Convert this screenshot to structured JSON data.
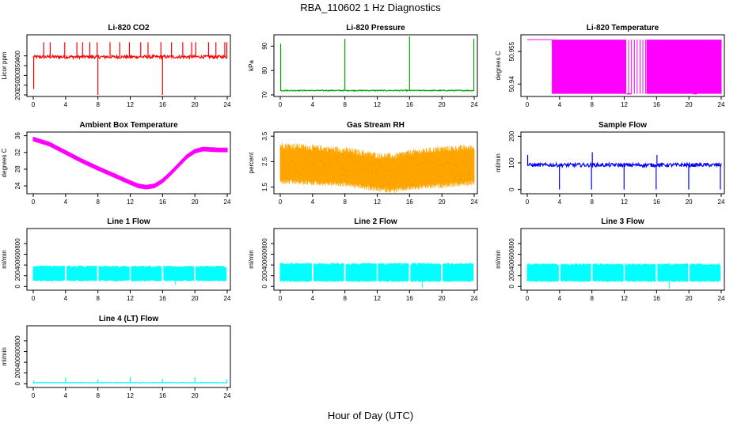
{
  "figure": {
    "title": "RBA_110602  1 Hz Diagnostics",
    "xlabel": "Hour of Day (UTC)"
  },
  "chart_data": [
    {
      "type": "line",
      "title": "Li-820 CO2",
      "ylabel": "Licor ppm",
      "color": "#ff0000",
      "xlim": [
        0,
        24
      ],
      "xticks": [
        0,
        4,
        8,
        12,
        16,
        20,
        24
      ],
      "ylim": [
        200,
        500
      ],
      "yticks": [
        200,
        250,
        300,
        350,
        400
      ],
      "baseline": 395,
      "noise": 8,
      "spikes": [
        {
          "x": 0.05,
          "y": 230
        },
        {
          "x": 1.3,
          "y": 470
        },
        {
          "x": 2.1,
          "y": 470
        },
        {
          "x": 3.9,
          "y": 470
        },
        {
          "x": 5.4,
          "y": 470
        },
        {
          "x": 6.1,
          "y": 470
        },
        {
          "x": 7.0,
          "y": 470
        },
        {
          "x": 7.9,
          "y": 470
        },
        {
          "x": 8.0,
          "y": 200
        },
        {
          "x": 9.5,
          "y": 470
        },
        {
          "x": 10.7,
          "y": 470
        },
        {
          "x": 11.9,
          "y": 470
        },
        {
          "x": 13.3,
          "y": 470
        },
        {
          "x": 14.2,
          "y": 470
        },
        {
          "x": 15.8,
          "y": 470
        },
        {
          "x": 16.0,
          "y": 200
        },
        {
          "x": 17.1,
          "y": 470
        },
        {
          "x": 18.5,
          "y": 470
        },
        {
          "x": 19.6,
          "y": 470
        },
        {
          "x": 20.1,
          "y": 470
        },
        {
          "x": 21.7,
          "y": 470
        },
        {
          "x": 22.6,
          "y": 470
        },
        {
          "x": 23.7,
          "y": 470
        },
        {
          "x": 23.95,
          "y": 470
        }
      ]
    },
    {
      "type": "line",
      "title": "Li-820 Pressure",
      "ylabel": "kPa",
      "color": "#00aa00",
      "xlim": [
        0,
        24
      ],
      "xticks": [
        0,
        4,
        8,
        12,
        16,
        20,
        24
      ],
      "ylim": [
        70,
        94
      ],
      "yticks": [
        70,
        80,
        90
      ],
      "baseline": 71.8,
      "noise": 0.2,
      "spikes": [
        {
          "x": 0.05,
          "y": 91
        },
        {
          "x": 8.0,
          "y": 93
        },
        {
          "x": 16.0,
          "y": 94
        },
        {
          "x": 23.95,
          "y": 93
        }
      ]
    },
    {
      "type": "step",
      "title": "Li-820 Temperature",
      "ylabel": "degrees C",
      "color": "#ff00ff",
      "xlim": [
        0,
        24
      ],
      "xticks": [
        0,
        4,
        8,
        12,
        16,
        20,
        24
      ],
      "ylim": [
        50.935,
        50.962
      ],
      "yticks": [
        50.94,
        50.955
      ],
      "high": 50.9605,
      "low": 50.9355,
      "dense_ranges": [
        [
          3.1,
          12.2
        ],
        [
          14.8,
          24
        ]
      ],
      "sparse_ranges": [
        [
          12.2,
          14.8
        ]
      ],
      "solid_low_ranges": [
        [
          12.3,
          12.9
        ],
        [
          20.5,
          21.0
        ]
      ]
    },
    {
      "type": "scatter",
      "title": "Ambient Box Temperature",
      "ylabel": "degrees C",
      "color": "#ff00ff",
      "xlim": [
        0,
        24
      ],
      "xticks": [
        0,
        4,
        8,
        12,
        16,
        20,
        24
      ],
      "ylim": [
        22.5,
        36.5
      ],
      "yticks": [
        24,
        28,
        32,
        36
      ],
      "x": [
        0,
        2,
        4,
        6,
        8,
        10,
        12,
        13,
        14,
        15,
        16,
        17,
        18,
        19,
        20,
        21,
        22,
        23,
        24
      ],
      "y": [
        35.2,
        34.0,
        32.0,
        30.0,
        28.2,
        26.5,
        24.8,
        24.0,
        23.7,
        24.0,
        25.2,
        27.0,
        29.0,
        31.0,
        32.3,
        32.8,
        32.7,
        32.6,
        32.6
      ],
      "band": 0.45
    },
    {
      "type": "scatter",
      "title": "Gas Stream RH",
      "ylabel": "percent",
      "color": "#ffa500",
      "xlim": [
        0,
        24
      ],
      "xticks": [
        0,
        4,
        8,
        12,
        16,
        20,
        24
      ],
      "ylim": [
        1.3,
        3.6
      ],
      "yticks": [
        1.5,
        2.5,
        3.5
      ],
      "x": [
        0,
        4,
        8,
        12,
        14,
        16,
        20,
        24
      ],
      "upper": [
        3.1,
        3.0,
        2.9,
        2.7,
        2.65,
        2.8,
        2.95,
        3.0
      ],
      "lower": [
        1.75,
        1.7,
        1.65,
        1.45,
        1.4,
        1.5,
        1.6,
        1.7
      ]
    },
    {
      "type": "line",
      "title": "Sample Flow",
      "ylabel": "ml/min",
      "color": "#0000ff",
      "xlim": [
        0,
        24
      ],
      "xticks": [
        0,
        4,
        8,
        12,
        16,
        20,
        24
      ],
      "ylim": [
        -10,
        210
      ],
      "yticks": [
        0,
        100,
        200
      ],
      "baseline": 92,
      "noise": 7,
      "spikes": [
        {
          "x": 0.05,
          "y": 130
        },
        {
          "x": 3.98,
          "y": 0
        },
        {
          "x": 7.95,
          "y": 0
        },
        {
          "x": 8.05,
          "y": 140
        },
        {
          "x": 11.98,
          "y": 0
        },
        {
          "x": 15.95,
          "y": 0
        },
        {
          "x": 16.05,
          "y": 130
        },
        {
          "x": 19.98,
          "y": 0
        },
        {
          "x": 23.9,
          "y": 0
        }
      ]
    },
    {
      "type": "band",
      "title": "Line 1 Flow",
      "ylabel": "ml/min",
      "color": "#00ffff",
      "xlim": [
        0,
        24
      ],
      "xticks": [
        0,
        4,
        8,
        12,
        16,
        20,
        24
      ],
      "ylim": [
        -40,
        1050
      ],
      "yticks": [
        0,
        200,
        400,
        600,
        800
      ],
      "upper": 370,
      "lower": 110,
      "dropout": 30,
      "gaps": [
        4,
        8,
        12,
        16,
        20,
        24
      ]
    },
    {
      "type": "band",
      "title": "Line 2 Flow",
      "ylabel": "ml/min",
      "color": "#00ffff",
      "xlim": [
        0,
        24
      ],
      "xticks": [
        0,
        4,
        8,
        12,
        16,
        20,
        24
      ],
      "ylim": [
        -40,
        1050
      ],
      "yticks": [
        0,
        200,
        400,
        600,
        800
      ],
      "upper": 420,
      "lower": 100,
      "dropout": -30,
      "gaps": [
        4,
        8,
        12,
        16,
        20,
        24
      ]
    },
    {
      "type": "band",
      "title": "Line 3 Flow",
      "ylabel": "ml/min",
      "color": "#00ffff",
      "xlim": [
        0,
        24
      ],
      "xticks": [
        0,
        4,
        8,
        12,
        16,
        20,
        24
      ],
      "ylim": [
        -40,
        1050
      ],
      "yticks": [
        0,
        200,
        400,
        600,
        800
      ],
      "upper": 410,
      "lower": 100,
      "dropout": -40,
      "gaps": [
        4,
        8,
        12,
        16,
        20,
        24
      ]
    },
    {
      "type": "line",
      "title": "Line 4 (LT) Flow",
      "ylabel": "ml/min",
      "color": "#00ffff",
      "xlim": [
        0,
        24
      ],
      "xticks": [
        0,
        4,
        8,
        12,
        16,
        20,
        24
      ],
      "ylim": [
        -40,
        1050
      ],
      "yticks": [
        0,
        200,
        400,
        600,
        800
      ],
      "baseline": 20,
      "noise": 6,
      "spikes": [
        {
          "x": 0.05,
          "y": 60
        },
        {
          "x": 4.0,
          "y": 120
        },
        {
          "x": 8.0,
          "y": 80
        },
        {
          "x": 12.0,
          "y": 130
        },
        {
          "x": 16.0,
          "y": 90
        },
        {
          "x": 20.0,
          "y": 120
        },
        {
          "x": 23.95,
          "y": 80
        }
      ]
    }
  ]
}
